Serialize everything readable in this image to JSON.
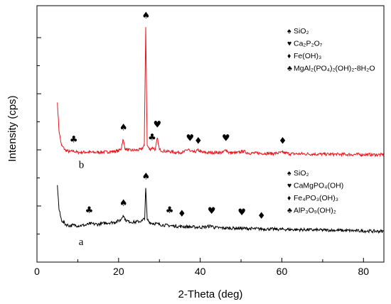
{
  "chart_data": {
    "type": "line",
    "xlabel": "2-Theta (deg)",
    "ylabel": "Intensity (cps)",
    "xlim": [
      0,
      85
    ],
    "x_ticks": [
      0,
      20,
      40,
      60,
      80
    ],
    "x_tick_labels": [
      "0",
      "20",
      "40",
      "60",
      "80"
    ],
    "y_tick_labels_visible": false,
    "grid": false,
    "series": [
      {
        "name": "b",
        "color": "#e8141c",
        "baseline": 5.6,
        "points": [
          [
            5,
            9.2
          ],
          [
            5.4,
            7.2
          ],
          [
            6,
            6.2
          ],
          [
            7,
            5.85
          ],
          [
            8,
            5.75
          ],
          [
            9,
            5.8
          ],
          [
            10,
            5.7
          ],
          [
            12,
            5.72
          ],
          [
            14,
            5.7
          ],
          [
            16,
            5.72
          ],
          [
            18,
            5.75
          ],
          [
            20,
            5.8
          ],
          [
            20.6,
            5.95
          ],
          [
            21.1,
            6.6
          ],
          [
            21.6,
            5.95
          ],
          [
            22.5,
            5.85
          ],
          [
            24,
            5.85
          ],
          [
            25.5,
            5.9
          ],
          [
            26.3,
            6.2
          ],
          [
            26.65,
            14.5
          ],
          [
            27.0,
            6.2
          ],
          [
            27.6,
            5.9
          ],
          [
            28.3,
            6.05
          ],
          [
            29.0,
            5.9
          ],
          [
            29.5,
            6.7
          ],
          [
            30.0,
            5.9
          ],
          [
            31,
            5.8
          ],
          [
            32,
            5.78
          ],
          [
            34,
            5.7
          ],
          [
            36,
            5.72
          ],
          [
            37.2,
            5.95
          ],
          [
            37.5,
            5.75
          ],
          [
            38.5,
            5.72
          ],
          [
            39.5,
            5.85
          ],
          [
            40.5,
            5.7
          ],
          [
            42,
            5.68
          ],
          [
            44,
            5.7
          ],
          [
            45.5,
            5.68
          ],
          [
            46.3,
            5.9
          ],
          [
            47,
            5.68
          ],
          [
            49,
            5.66
          ],
          [
            50.5,
            5.78
          ],
          [
            52,
            5.65
          ],
          [
            54,
            5.64
          ],
          [
            56,
            5.63
          ],
          [
            58,
            5.62
          ],
          [
            60.2,
            5.7
          ],
          [
            62,
            5.6
          ],
          [
            65,
            5.6
          ],
          [
            68,
            5.58
          ],
          [
            71,
            5.57
          ],
          [
            74,
            5.56
          ],
          [
            77,
            5.55
          ],
          [
            80,
            5.55
          ],
          [
            83,
            5.54
          ],
          [
            85,
            5.54
          ]
        ]
      },
      {
        "name": "a",
        "color": "#000000",
        "baseline": 0.1,
        "points": [
          [
            5,
            3.4
          ],
          [
            5.4,
            1.7
          ],
          [
            6,
            0.95
          ],
          [
            7,
            0.65
          ],
          [
            8,
            0.55
          ],
          [
            9,
            0.6
          ],
          [
            10,
            0.55
          ],
          [
            12,
            0.6
          ],
          [
            13,
            0.7
          ],
          [
            15,
            0.65
          ],
          [
            17,
            0.75
          ],
          [
            19,
            0.8
          ],
          [
            20.5,
            0.95
          ],
          [
            21.1,
            1.3
          ],
          [
            21.7,
            0.95
          ],
          [
            22.5,
            0.85
          ],
          [
            24,
            0.8
          ],
          [
            25.8,
            0.9
          ],
          [
            26.4,
            1.1
          ],
          [
            26.65,
            3.2
          ],
          [
            27.0,
            1.0
          ],
          [
            27.8,
            0.75
          ],
          [
            29,
            0.7
          ],
          [
            31,
            0.6
          ],
          [
            33,
            0.55
          ],
          [
            35,
            0.5
          ],
          [
            37,
            0.48
          ],
          [
            39,
            0.45
          ],
          [
            41,
            0.45
          ],
          [
            42.8,
            0.55
          ],
          [
            43.5,
            0.42
          ],
          [
            45,
            0.4
          ],
          [
            47,
            0.38
          ],
          [
            49,
            0.38
          ],
          [
            51,
            0.36
          ],
          [
            53,
            0.34
          ],
          [
            55,
            0.33
          ],
          [
            57,
            0.32
          ],
          [
            60,
            0.3
          ],
          [
            63,
            0.28
          ],
          [
            66,
            0.27
          ],
          [
            69,
            0.25
          ],
          [
            72,
            0.24
          ],
          [
            75,
            0.22
          ],
          [
            78,
            0.2
          ],
          [
            81,
            0.18
          ],
          [
            85,
            0.15
          ]
        ]
      }
    ],
    "trace_labels": [
      {
        "text": "b",
        "x": 5.0,
        "y": 4.6
      },
      {
        "text": "a",
        "x": 5.0,
        "y": -0.8
      }
    ],
    "peak_markers": [
      {
        "symbol": "♣",
        "x": 9.0,
        "y": 6.4
      },
      {
        "symbol": "♠",
        "x": 21.2,
        "y": 7.25
      },
      {
        "symbol": "♠",
        "x": 26.7,
        "y": 15.1
      },
      {
        "symbol": "♣",
        "x": 28.2,
        "y": 6.55
      },
      {
        "symbol": "♥",
        "x": 29.5,
        "y": 7.45
      },
      {
        "symbol": "♥",
        "x": 37.5,
        "y": 6.5
      },
      {
        "symbol": "♦",
        "x": 39.5,
        "y": 6.3
      },
      {
        "symbol": "♥",
        "x": 46.3,
        "y": 6.5
      },
      {
        "symbol": "♦",
        "x": 60.2,
        "y": 6.3
      },
      {
        "symbol": "♣",
        "x": 12.8,
        "y": 1.45
      },
      {
        "symbol": "♠",
        "x": 21.2,
        "y": 1.95
      },
      {
        "symbol": "♠",
        "x": 26.7,
        "y": 3.8
      },
      {
        "symbol": "♣",
        "x": 32.5,
        "y": 1.45
      },
      {
        "symbol": "♦",
        "x": 35.5,
        "y": 1.2
      },
      {
        "symbol": "♥",
        "x": 42.8,
        "y": 1.4
      },
      {
        "symbol": "♥",
        "x": 50.2,
        "y": 1.3
      },
      {
        "symbol": "♦",
        "x": 55.0,
        "y": 1.05
      }
    ],
    "legend_b": [
      {
        "symbol": "♠",
        "label": "SiO₂"
      },
      {
        "symbol": "♥",
        "label": "Ca₂P₂O₇"
      },
      {
        "symbol": "♦",
        "label": "Fe(OH)₃"
      },
      {
        "symbol": "♣",
        "label": "MgAl₂(PO₄)₂(OH)₂-8H₂O"
      }
    ],
    "legend_a": [
      {
        "symbol": "♠",
        "label": "SiO₂"
      },
      {
        "symbol": "♥",
        "label": "CaMgPO₄(OH)"
      },
      {
        "symbol": "♦",
        "label": "Fe₄PO₃(OH)₃"
      },
      {
        "symbol": "♣",
        "label": "AlP₃O₉(OH)₂"
      }
    ]
  }
}
